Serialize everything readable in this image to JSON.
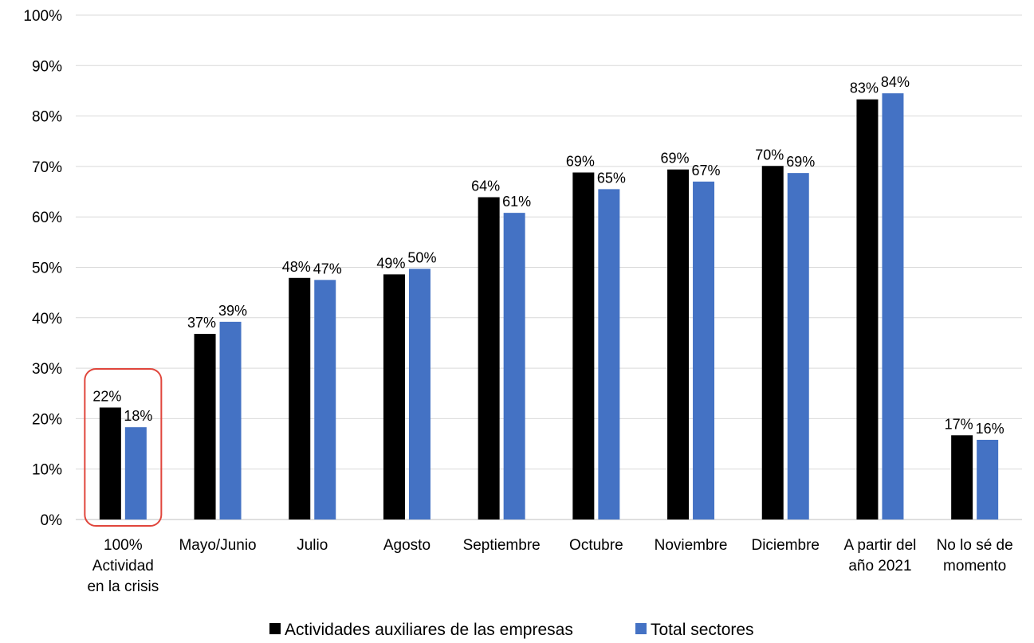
{
  "chart_data": {
    "type": "bar",
    "title": "",
    "xlabel": "",
    "ylabel": "",
    "ylim": [
      0,
      100
    ],
    "y_ticks": [
      "0%",
      "10%",
      "20%",
      "30%",
      "40%",
      "50%",
      "60%",
      "70%",
      "80%",
      "90%",
      "100%"
    ],
    "categories": [
      [
        "100%",
        "Actividad",
        "en la crisis"
      ],
      [
        "Mayo/Junio"
      ],
      [
        "Julio"
      ],
      [
        "Agosto"
      ],
      [
        "Septiembre"
      ],
      [
        "Octubre"
      ],
      [
        "Noviembre"
      ],
      [
        "Diciembre"
      ],
      [
        "A partir del",
        "año 2021"
      ],
      [
        "No lo sé de",
        "momento"
      ]
    ],
    "series": [
      {
        "name": "Actividades auxiliares de las empresas",
        "color": "#000000",
        "values": [
          22.2,
          36.8,
          47.9,
          48.6,
          63.9,
          68.8,
          69.4,
          70.1,
          83.3,
          16.7
        ],
        "labels": [
          "22%",
          "37%",
          "48%",
          "49%",
          "64%",
          "69%",
          "69%",
          "70%",
          "83%",
          "17%"
        ]
      },
      {
        "name": "Total sectores",
        "color": "#4472c4",
        "values": [
          18.3,
          39.2,
          47.5,
          49.7,
          60.8,
          65.5,
          67.0,
          68.7,
          84.5,
          15.8
        ],
        "labels": [
          "18%",
          "39%",
          "47%",
          "50%",
          "61%",
          "65%",
          "67%",
          "69%",
          "84%",
          "16%"
        ]
      }
    ],
    "highlight": {
      "category_index": 0,
      "color": "#e0463c"
    },
    "grid": true,
    "legend_position": "bottom-center"
  }
}
